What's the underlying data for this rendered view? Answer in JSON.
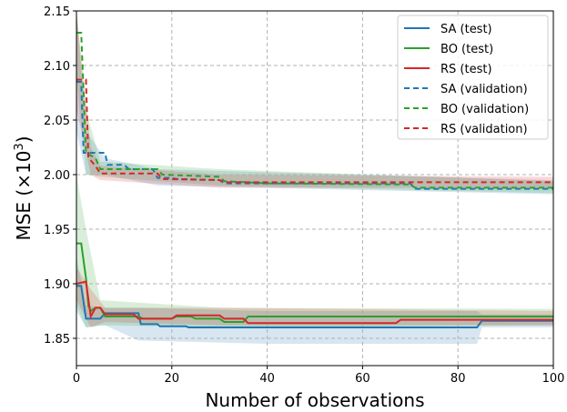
{
  "chart_data": {
    "type": "line",
    "xlabel": "Number of observations",
    "ylabel_base": "MSE (×10",
    "ylabel_exp": "3",
    "ylabel_close": ")",
    "xlim": [
      0,
      100
    ],
    "ylim": [
      1.825,
      2.15
    ],
    "xticks": [
      0,
      20,
      40,
      60,
      80,
      100
    ],
    "xtick_labels": [
      "0",
      "20",
      "40",
      "60",
      "80",
      "100"
    ],
    "yticks": [
      1.85,
      1.9,
      1.95,
      2.0,
      2.05,
      2.1,
      2.15
    ],
    "ytick_labels": [
      "1.85",
      "1.90",
      "1.95",
      "2.00",
      "2.05",
      "2.10",
      "2.15"
    ],
    "grid": true,
    "legend_position": "top-right",
    "series": [
      {
        "name": "SA (test)",
        "color": "#1f77b4",
        "style": "solid",
        "points": [
          [
            0,
            1.898
          ],
          [
            1,
            1.898
          ],
          [
            2,
            1.868
          ],
          [
            5,
            1.868
          ],
          [
            6,
            1.873
          ],
          [
            13,
            1.873
          ],
          [
            13.5,
            1.863
          ],
          [
            17,
            1.863
          ],
          [
            17.5,
            1.861
          ],
          [
            23,
            1.861
          ],
          [
            23.5,
            1.86
          ],
          [
            84,
            1.86
          ],
          [
            85,
            1.866
          ],
          [
            100,
            1.866
          ]
        ],
        "band": [
          [
            0,
            1.925,
            1.875
          ],
          [
            2,
            1.88,
            1.86
          ],
          [
            6,
            1.878,
            1.862
          ],
          [
            13,
            1.878,
            1.848
          ],
          [
            40,
            1.875,
            1.845
          ],
          [
            84,
            1.875,
            1.845
          ],
          [
            85,
            1.872,
            1.86
          ],
          [
            100,
            1.872,
            1.86
          ]
        ]
      },
      {
        "name": "BO (test)",
        "color": "#2ca02c",
        "style": "solid",
        "points": [
          [
            0,
            1.937
          ],
          [
            1,
            1.937
          ],
          [
            2,
            1.905
          ],
          [
            2.5,
            1.88
          ],
          [
            3,
            1.875
          ],
          [
            4,
            1.878
          ],
          [
            5,
            1.878
          ],
          [
            6,
            1.87
          ],
          [
            13,
            1.87
          ],
          [
            14,
            1.868
          ],
          [
            20,
            1.868
          ],
          [
            21,
            1.87
          ],
          [
            24,
            1.87
          ],
          [
            25,
            1.868
          ],
          [
            30,
            1.868
          ],
          [
            31,
            1.865
          ],
          [
            35,
            1.865
          ],
          [
            36,
            1.87
          ],
          [
            100,
            1.87
          ]
        ],
        "band": [
          [
            0,
            2.0,
            1.88
          ],
          [
            2,
            1.95,
            1.86
          ],
          [
            5,
            1.885,
            1.862
          ],
          [
            30,
            1.878,
            1.86
          ],
          [
            100,
            1.877,
            1.862
          ]
        ]
      },
      {
        "name": "RS (test)",
        "color": "#d62728",
        "style": "solid",
        "points": [
          [
            0,
            1.9
          ],
          [
            2,
            1.902
          ],
          [
            3,
            1.87
          ],
          [
            4,
            1.878
          ],
          [
            5,
            1.878
          ],
          [
            6,
            1.872
          ],
          [
            12,
            1.872
          ],
          [
            13,
            1.868
          ],
          [
            20,
            1.868
          ],
          [
            21,
            1.871
          ],
          [
            30,
            1.871
          ],
          [
            31,
            1.868
          ],
          [
            35,
            1.868
          ],
          [
            36,
            1.864
          ],
          [
            67,
            1.864
          ],
          [
            68,
            1.867
          ],
          [
            100,
            1.867
          ]
        ],
        "band": [
          [
            0,
            1.915,
            1.885
          ],
          [
            3,
            1.895,
            1.86
          ],
          [
            6,
            1.878,
            1.865
          ],
          [
            30,
            1.878,
            1.862
          ],
          [
            100,
            1.875,
            1.862
          ]
        ]
      },
      {
        "name": "SA (validation)",
        "color": "#1f77b4",
        "style": "dashed",
        "points": [
          [
            0,
            2.085
          ],
          [
            1,
            2.085
          ],
          [
            1.5,
            2.02
          ],
          [
            6,
            2.02
          ],
          [
            6.5,
            2.009
          ],
          [
            10,
            2.009
          ],
          [
            11,
            2.005
          ],
          [
            16,
            2.005
          ],
          [
            17,
            1.997
          ],
          [
            20,
            1.997
          ],
          [
            21,
            1.996
          ],
          [
            30,
            1.995
          ],
          [
            31,
            1.992
          ],
          [
            70,
            1.992
          ],
          [
            71,
            1.987
          ],
          [
            100,
            1.987
          ]
        ],
        "band": [
          [
            0,
            2.15,
            2.04
          ],
          [
            2,
            2.04,
            2.0
          ],
          [
            6,
            2.015,
            2.0
          ],
          [
            17,
            2.005,
            1.99
          ],
          [
            100,
            1.995,
            1.982
          ]
        ]
      },
      {
        "name": "BO (validation)",
        "color": "#2ca02c",
        "style": "dashed",
        "points": [
          [
            0,
            2.13
          ],
          [
            1,
            2.13
          ],
          [
            2,
            2.02
          ],
          [
            4,
            2.015
          ],
          [
            5,
            2.005
          ],
          [
            17,
            2.005
          ],
          [
            18,
            2.0
          ],
          [
            30,
            1.998
          ],
          [
            31,
            1.994
          ],
          [
            40,
            1.992
          ],
          [
            70,
            1.991
          ],
          [
            71,
            1.988
          ],
          [
            100,
            1.988
          ]
        ],
        "band": [
          [
            0,
            2.15,
            2.09
          ],
          [
            2,
            2.06,
            2.0
          ],
          [
            5,
            2.012,
            1.998
          ],
          [
            30,
            2.005,
            1.99
          ],
          [
            100,
            1.994,
            1.983
          ]
        ]
      },
      {
        "name": "RS (validation)",
        "color": "#d62728",
        "style": "dashed",
        "points": [
          [
            0,
            2.087
          ],
          [
            2,
            2.087
          ],
          [
            2.5,
            2.015
          ],
          [
            3,
            2.013
          ],
          [
            4,
            2.008
          ],
          [
            5,
            2.001
          ],
          [
            17,
            2.001
          ],
          [
            18,
            1.996
          ],
          [
            30,
            1.995
          ],
          [
            31,
            1.993
          ],
          [
            100,
            1.993
          ]
        ],
        "band": [
          [
            0,
            2.15,
            2.06
          ],
          [
            3,
            2.025,
            2.0
          ],
          [
            5,
            2.008,
            1.995
          ],
          [
            30,
            2.0,
            1.988
          ],
          [
            100,
            1.998,
            1.988
          ]
        ]
      }
    ]
  }
}
